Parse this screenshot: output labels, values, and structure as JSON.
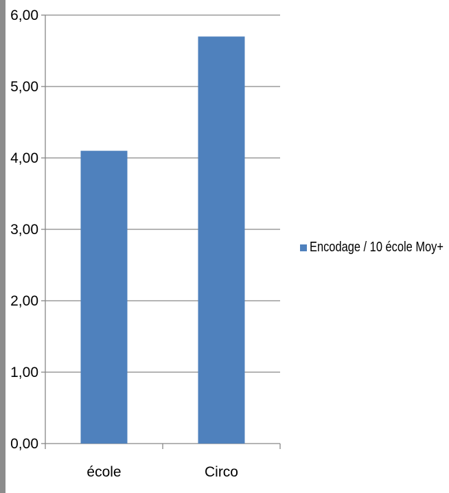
{
  "chart_data": {
    "type": "bar",
    "categories": [
      "école",
      "Circo"
    ],
    "series": [
      {
        "name": "Encodage / 10 école Moy+",
        "values": [
          4.1,
          5.7
        ],
        "color": "#4f81bd"
      }
    ],
    "y_ticks": [
      "0,00",
      "1,00",
      "2,00",
      "3,00",
      "4,00",
      "5,00",
      "6,00"
    ],
    "ylim": [
      0,
      6
    ],
    "grid": true,
    "legend_position": "right",
    "title": "",
    "xlabel": "",
    "ylabel": ""
  }
}
